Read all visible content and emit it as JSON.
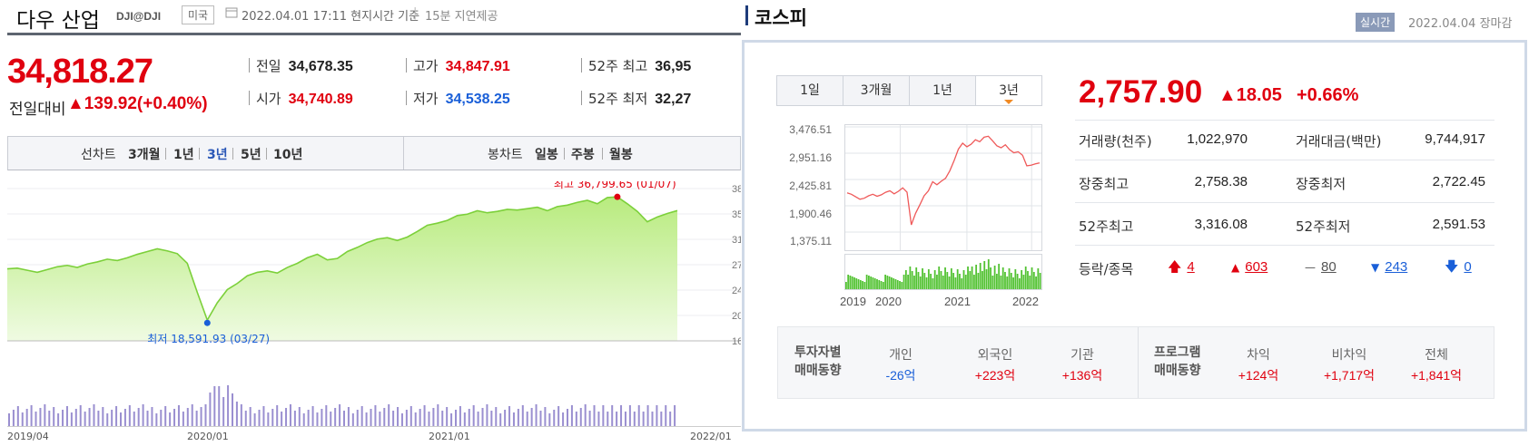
{
  "dow": {
    "title": "다우 산업",
    "code": "DJI@DJI",
    "country": "미국",
    "time": "2022.04.01 17:11 현지시간 기준",
    "delay": "15분 지연제공",
    "price": "34,818.27",
    "change_label": "전일대비",
    "change": "▲139.92(+0.40%)",
    "stats": [
      {
        "label": "전일",
        "value": "34,678.35",
        "color": "#222222"
      },
      {
        "label": "시가",
        "value": "34,740.89",
        "color": "#e0000f"
      },
      {
        "label": "고가",
        "value": "34,847.91",
        "color": "#e0000f"
      },
      {
        "label": "저가",
        "value": "34,538.25",
        "color": "#1a5fd8"
      },
      {
        "label": "52주 최고",
        "value": "36,95",
        "color": "#222222"
      },
      {
        "label": "52주 최저",
        "value": "32,27",
        "color": "#222222"
      }
    ],
    "chart_tabs_label": "선차트",
    "chart_tabs": [
      "3개월",
      "1년",
      "3년",
      "5년",
      "10년"
    ],
    "chart_tabs_active": "3년",
    "candle_tabs_label": "봉차트",
    "candle_tabs": [
      "일봉",
      "주봉",
      "월봉"
    ],
    "max_annotation": "최고 36,799.65 (01/07)",
    "min_annotation": "최저 18,591.93 (03/27)",
    "right_ticks": [
      "38",
      "35",
      "31",
      "27",
      "24",
      "20",
      "16"
    ],
    "x_labels": [
      "2019/04",
      "2020/01",
      "2021/01",
      "2022/01"
    ]
  },
  "kospi": {
    "title": "코스피",
    "realtime_badge": "실시간",
    "date": "2022.04.04 장마감",
    "period_tabs": [
      "1일",
      "3개월",
      "1년",
      "3년"
    ],
    "active_period": "3년",
    "price": "2,757.90",
    "change": "▲18.05",
    "change_pct": "+0.66%",
    "rows": [
      {
        "l1": "거래량(천주)",
        "v1": "1,022,970",
        "l2": "거래대금(백만)",
        "v2": "9,744,917"
      },
      {
        "l1": "장중최고",
        "v1": "2,758.38",
        "l2": "장중최저",
        "v2": "2,722.45"
      },
      {
        "l1": "52주최고",
        "v1": "3,316.08",
        "l2": "52주최저",
        "v2": "2,591.53"
      }
    ],
    "breadth_label": "등락/종목",
    "breadth": [
      {
        "icon": "upper-limit-icon",
        "symbol": "🡅",
        "value": "4",
        "color": "#e0000f"
      },
      {
        "icon": "rise-icon",
        "symbol": "▲",
        "value": "603",
        "color": "#e0000f"
      },
      {
        "icon": "flat-icon",
        "symbol": "—",
        "value": "80",
        "color": "#555555"
      },
      {
        "icon": "fall-icon",
        "symbol": "▼",
        "value": "243",
        "color": "#1a5fd8"
      },
      {
        "icon": "lower-limit-icon",
        "symbol": "🡇",
        "value": "0",
        "color": "#1a5fd8"
      }
    ],
    "investor": {
      "heading1": "투자자별",
      "heading2": "매매동향",
      "items": [
        {
          "label": "개인",
          "value": "-26억",
          "color": "#1a5fd8"
        },
        {
          "label": "외국인",
          "value": "+223억",
          "color": "#e0000f"
        },
        {
          "label": "기관",
          "value": "+136억",
          "color": "#e0000f"
        }
      ]
    },
    "program": {
      "heading1": "프로그램",
      "heading2": "매매동향",
      "items": [
        {
          "label": "차익",
          "value": "+124억",
          "color": "#e0000f"
        },
        {
          "label": "비차익",
          "value": "+1,717억",
          "color": "#e0000f"
        },
        {
          "label": "전체",
          "value": "+1,841억",
          "color": "#e0000f"
        }
      ]
    },
    "y_ticks": [
      "3,476.51",
      "2,951.16",
      "2,425.81",
      "1,900.46",
      "1,375.11"
    ],
    "x_ticks": [
      "2019",
      "2020",
      "2021",
      "2022"
    ]
  },
  "chart_data": [
    {
      "type": "area",
      "series": [
        {
          "values": [
            26400,
            26500,
            26200,
            25900,
            26300,
            26700,
            26900,
            26600,
            27100,
            27400,
            27800,
            27600,
            28000,
            28500,
            28900,
            29300,
            29000,
            28600,
            27200,
            23000,
            19000,
            21500,
            23400,
            24300,
            25400,
            25900,
            26100,
            25800,
            26600,
            27200,
            28000,
            28500,
            27700,
            27900,
            28900,
            29500,
            30200,
            30700,
            30900,
            30500,
            31000,
            31800,
            32700,
            33000,
            33400,
            34100,
            34300,
            34800,
            34500,
            34700,
            35000,
            34900,
            35100,
            35300,
            34800,
            35400,
            35600,
            36000,
            36300,
            35800,
            36700,
            36799.65,
            35800,
            34700,
            33200,
            33900,
            34400,
            34818.27
          ]
        }
      ],
      "min_point": {
        "label": "최저",
        "value": 18591.93,
        "date": "03/27"
      },
      "max_point": {
        "label": "최고",
        "value": 36799.65,
        "date": "01/07"
      },
      "x_labels": [
        "2019/04",
        "2020/01",
        "2021/01",
        "2022/01"
      ]
    },
    {
      "type": "line",
      "series": [
        {
          "values": [
            2160,
            2130,
            2080,
            2030,
            2050,
            2100,
            2130,
            2090,
            2120,
            2170,
            2200,
            2140,
            2190,
            2260,
            2170,
            1520,
            1750,
            1920,
            2100,
            2200,
            2380,
            2320,
            2390,
            2450,
            2600,
            2800,
            3030,
            3150,
            3080,
            3130,
            3220,
            3180,
            3270,
            3290,
            3200,
            3100,
            3060,
            3120,
            3020,
            2960,
            2980,
            2910,
            2700,
            2710,
            2740,
            2757.9
          ]
        }
      ],
      "ylim": [
        1375.11,
        3476.51
      ],
      "y_ticks": [
        3476.51,
        2951.16,
        2425.81,
        1900.46,
        1375.11
      ],
      "x_ticks": [
        "2019",
        "2020",
        "2021",
        "2022"
      ]
    }
  ]
}
